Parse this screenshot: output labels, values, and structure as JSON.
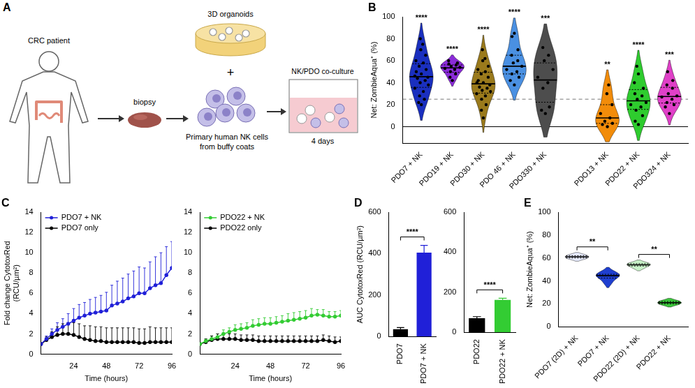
{
  "diagram": {
    "panel": "A",
    "patient": "CRC patient",
    "biopsy": "biopsy",
    "organoids": "3D organoids",
    "joiner": "+",
    "nk_cells": "Primary human NK cells from buffy coats",
    "coculture": "NK/PDO co-culture",
    "duration": "4 days"
  },
  "chart_data": [
    {
      "panel": "B",
      "type": "violin",
      "categories": [
        "PDO7 + NK",
        "PDO19 + NK",
        "PDO30 + NK",
        "PDO 46 + NK",
        "PDO330 + NK",
        null,
        "PDO13 + NK",
        "PDO22 + NK",
        "PDO324 + NK"
      ],
      "values": [
        [
          20,
          22,
          25,
          28,
          32,
          35,
          38,
          40,
          42,
          44,
          45,
          46,
          48,
          50,
          52,
          55,
          58,
          60,
          65,
          70,
          75,
          80
        ],
        [
          42,
          45,
          48,
          50,
          52,
          53,
          54,
          55,
          56,
          57,
          58,
          60
        ],
        [
          8,
          15,
          20,
          25,
          28,
          30,
          32,
          33,
          35,
          36,
          38,
          40,
          40,
          42,
          45,
          48,
          50,
          52,
          55,
          60,
          62,
          70
        ],
        [
          38,
          42,
          45,
          48,
          50,
          52,
          55,
          58,
          60,
          65,
          70,
          82,
          85
        ],
        [
          12,
          15,
          18,
          35,
          40,
          45,
          52,
          60,
          65,
          72
        ],
        null,
        [
          0,
          2,
          3,
          5,
          8,
          12,
          20,
          30,
          38
        ],
        [
          2,
          5,
          10,
          15,
          18,
          20,
          22,
          25,
          28,
          30,
          35,
          40,
          48,
          55
        ],
        [
          12,
          18,
          20,
          22,
          25,
          27,
          28,
          30,
          35,
          38,
          42,
          50
        ]
      ],
      "colors": [
        "#1a2fbf",
        "#8b2bd9",
        "#9a7a1c",
        "#4a90e2",
        "#4d4d4d",
        null,
        "#f28c0a",
        "#2ecc2e",
        "#e040c8"
      ],
      "significance": [
        "****",
        "****",
        "****",
        "****",
        "***",
        null,
        "**",
        "****",
        "***"
      ],
      "reference_line": 25,
      "ylabel": "Net: ZombieAqua⁺ (%)",
      "ylim": [
        -15,
        100
      ],
      "yticks": [
        0,
        20,
        40,
        60,
        80,
        100
      ],
      "grid": false,
      "marker": "circle"
    },
    {
      "panel": "C",
      "type": "line",
      "x": [
        0,
        4,
        8,
        12,
        16,
        20,
        24,
        28,
        32,
        36,
        40,
        44,
        48,
        52,
        56,
        60,
        64,
        68,
        72,
        76,
        80,
        84,
        88,
        92,
        96
      ],
      "series": [
        {
          "name": "PDO7 + NK",
          "color": "#2020d8",
          "values": [
            1.0,
            1.5,
            2.0,
            2.4,
            2.7,
            3.0,
            3.3,
            3.6,
            3.8,
            4.0,
            4.1,
            4.2,
            4.3,
            4.8,
            5.0,
            5.2,
            5.5,
            5.7,
            6.0,
            6.0,
            6.5,
            6.8,
            7.0,
            7.8,
            8.5
          ],
          "errors": [
            0.1,
            0.3,
            0.5,
            0.7,
            0.8,
            1.0,
            1.2,
            1.3,
            1.3,
            1.4,
            1.5,
            1.6,
            1.8,
            2.0,
            2.2,
            2.3,
            2.4,
            2.5,
            2.6,
            2.5,
            2.6,
            2.8,
            3.0,
            2.8,
            2.6
          ]
        },
        {
          "name": "PDO7 only",
          "color": "#000000",
          "values": [
            1.0,
            1.4,
            1.7,
            1.9,
            2.0,
            2.0,
            1.9,
            1.7,
            1.5,
            1.4,
            1.3,
            1.3,
            1.2,
            1.2,
            1.2,
            1.2,
            1.2,
            1.2,
            1.1,
            1.1,
            1.2,
            1.2,
            1.2,
            1.2,
            1.2
          ],
          "errors": [
            0.1,
            0.3,
            0.5,
            0.8,
            1.0,
            1.1,
            1.2,
            1.3,
            1.3,
            1.4,
            1.4,
            1.4,
            1.4,
            1.4,
            1.4,
            1.4,
            1.4,
            1.4,
            1.4,
            1.4,
            1.5,
            1.4,
            1.4,
            1.4,
            1.4
          ]
        }
      ],
      "xlabel": "Time (hours)",
      "ylabel": "Fold change CytotoxRed (RCU/µm²)",
      "xlim": [
        0,
        96
      ],
      "xticks": [
        24,
        48,
        72,
        96
      ],
      "ylim": [
        0,
        14
      ],
      "yticks": [
        0,
        2,
        4,
        6,
        8,
        10,
        12,
        14
      ],
      "legend": "upper left",
      "grid": false,
      "marker": "circle"
    },
    {
      "type": "line",
      "x": [
        0,
        4,
        8,
        12,
        16,
        20,
        24,
        28,
        32,
        36,
        40,
        44,
        48,
        52,
        56,
        60,
        64,
        68,
        72,
        76,
        80,
        84,
        88,
        92,
        96
      ],
      "series": [
        {
          "name": "PDO22 + NK",
          "color": "#33cc33",
          "values": [
            1.0,
            1.3,
            1.5,
            1.7,
            2.0,
            2.2,
            2.4,
            2.5,
            2.6,
            2.8,
            2.9,
            3.0,
            3.0,
            3.1,
            3.2,
            3.3,
            3.4,
            3.5,
            3.6,
            3.8,
            3.9,
            3.8,
            3.7,
            3.7,
            3.8
          ],
          "errors": [
            0.1,
            0.2,
            0.3,
            0.3,
            0.4,
            0.4,
            0.5,
            0.5,
            0.5,
            0.6,
            0.6,
            0.6,
            0.6,
            0.6,
            0.6,
            0.7,
            0.7,
            0.7,
            0.7,
            0.7,
            0.5,
            0.6,
            0.5,
            0.5,
            0.5
          ]
        },
        {
          "name": "PDO22 only",
          "color": "#000000",
          "values": [
            1.0,
            1.2,
            1.4,
            1.5,
            1.5,
            1.5,
            1.5,
            1.4,
            1.4,
            1.4,
            1.3,
            1.3,
            1.3,
            1.3,
            1.3,
            1.3,
            1.3,
            1.3,
            1.3,
            1.3,
            1.3,
            1.4,
            1.3,
            1.2,
            1.3
          ],
          "errors": [
            0.1,
            0.3,
            0.4,
            0.5,
            0.5,
            0.5,
            0.5,
            0.5,
            0.5,
            0.5,
            0.5,
            0.5,
            0.5,
            0.5,
            0.5,
            0.5,
            0.5,
            0.5,
            0.5,
            0.5,
            0.5,
            0.5,
            0.5,
            0.5,
            0.4
          ]
        }
      ],
      "xlabel": "Time (hours)",
      "xlim": [
        0,
        96
      ],
      "xticks": [
        24,
        48,
        72,
        96
      ],
      "ylim": [
        0,
        14
      ],
      "yticks": [
        0,
        2,
        4,
        6,
        8,
        10,
        12,
        14
      ],
      "legend": "upper left",
      "grid": false,
      "marker": "circle"
    },
    {
      "panel": "D",
      "type": "bar",
      "categories": [
        "PDO7",
        "PDO7 + NK"
      ],
      "values": [
        35,
        405
      ],
      "errors": [
        8,
        35
      ],
      "colors": [
        "#000000",
        "#2020d8"
      ],
      "ylabel": "AUC CytotoxRed (RCU/µm²)",
      "ylim": [
        0,
        600
      ],
      "yticks": [
        0,
        200,
        400,
        600
      ],
      "comparisons": [
        {
          "between": [
            "PDO7",
            "PDO7 + NK"
          ],
          "label": "****"
        }
      ],
      "grid": false
    },
    {
      "type": "bar",
      "categories": [
        "PDO22",
        "PDO22 + NK"
      ],
      "values": [
        70,
        162
      ],
      "errors": [
        8,
        8
      ],
      "colors": [
        "#000000",
        "#33cc33"
      ],
      "ylim": [
        0,
        600
      ],
      "yticks": [
        0,
        200,
        400,
        600
      ],
      "comparisons": [
        {
          "between": [
            "PDO22",
            "PDO22 + NK"
          ],
          "label": "****"
        }
      ],
      "grid": false
    },
    {
      "panel": "E",
      "type": "violin",
      "categories": [
        "PDO7 (2D) + NK",
        "PDO7 + NK",
        "PDO22 (2D) + NK",
        "PDO22 + NK"
      ],
      "values": [
        [
          59,
          60,
          61,
          62,
          63
        ],
        [
          38,
          42,
          44,
          45,
          46,
          48
        ],
        [
          51,
          53,
          54,
          55,
          56
        ],
        [
          19,
          20,
          21,
          22,
          23
        ]
      ],
      "colors": [
        "#e8ecff",
        "#1f3fd0",
        "#c9f2c9",
        "#3cc83c"
      ],
      "comparisons": [
        {
          "between": [
            "PDO7 (2D) + NK",
            "PDO7 + NK"
          ],
          "label": "**"
        },
        {
          "between": [
            "PDO22 (2D) + NK",
            "PDO22 + NK"
          ],
          "label": "**"
        }
      ],
      "ylabel": "Net: ZombieAqua⁺ (%)",
      "ylim": [
        0,
        100
      ],
      "yticks": [
        0,
        20,
        40,
        60,
        80,
        100
      ],
      "grid": false,
      "marker": "none"
    }
  ]
}
